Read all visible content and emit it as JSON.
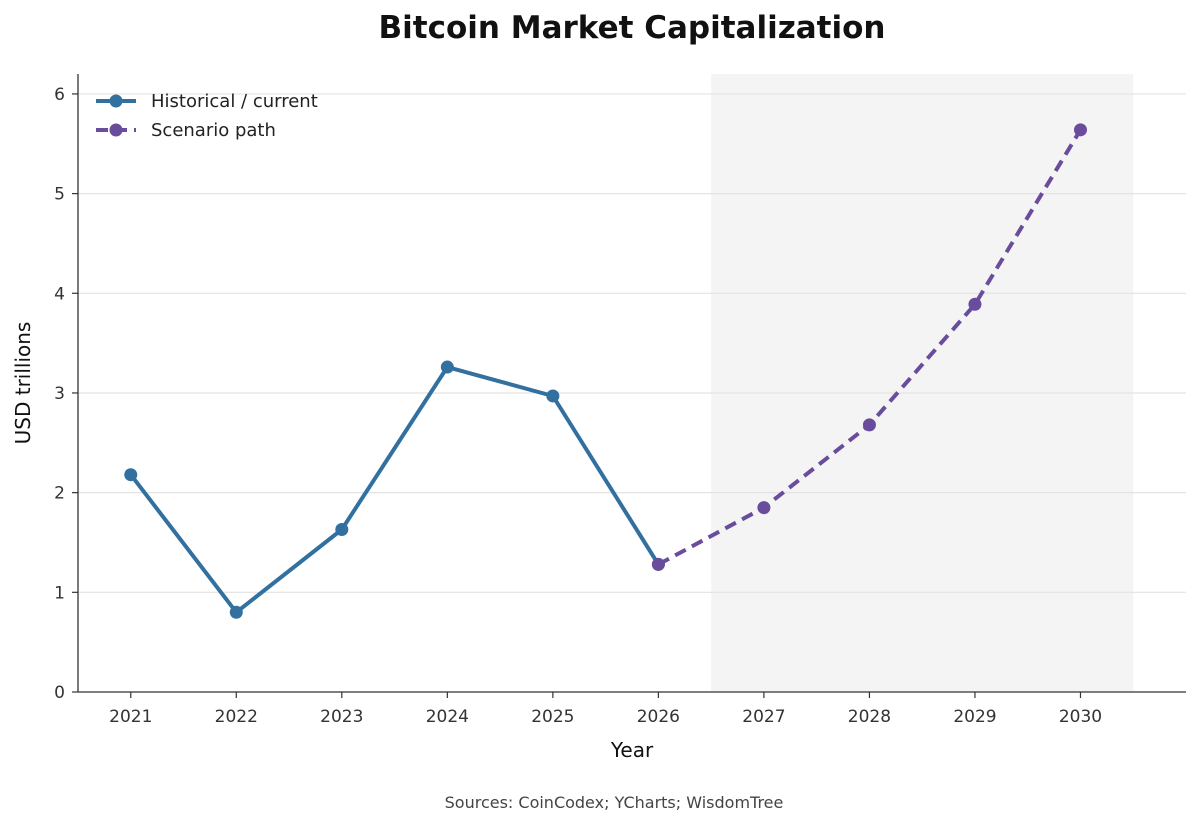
{
  "chart_data": {
    "type": "line",
    "title": "Bitcoin Market Capitalization",
    "xlabel": "Year",
    "ylabel": "USD trillions",
    "source": "Sources: CoinCodex; YCharts; WisdomTree",
    "x": [
      2021,
      2022,
      2023,
      2024,
      2025,
      2026,
      2027,
      2028,
      2029,
      2030
    ],
    "xlim": [
      2020.5,
      2031.0
    ],
    "ylim": [
      0,
      6.2
    ],
    "yticks": [
      0,
      1,
      2,
      3,
      4,
      5,
      6
    ],
    "grid": "horizontal",
    "legend_position": "top-left",
    "shaded_region": {
      "x_start": 2026.5,
      "x_end": 2030.5,
      "color": "#f4f4f4"
    },
    "series": [
      {
        "name": "Historical / current",
        "style": "solid",
        "color": "#31709f",
        "x": [
          2021,
          2022,
          2023,
          2024,
          2025,
          2026
        ],
        "values": [
          2.18,
          0.8,
          1.63,
          3.26,
          2.97,
          1.28
        ]
      },
      {
        "name": "Scenario path",
        "style": "dashed",
        "color": "#6a4c9c",
        "x": [
          2026,
          2027,
          2028,
          2029,
          2030
        ],
        "values": [
          1.28,
          1.85,
          2.68,
          3.89,
          5.64
        ]
      }
    ]
  }
}
